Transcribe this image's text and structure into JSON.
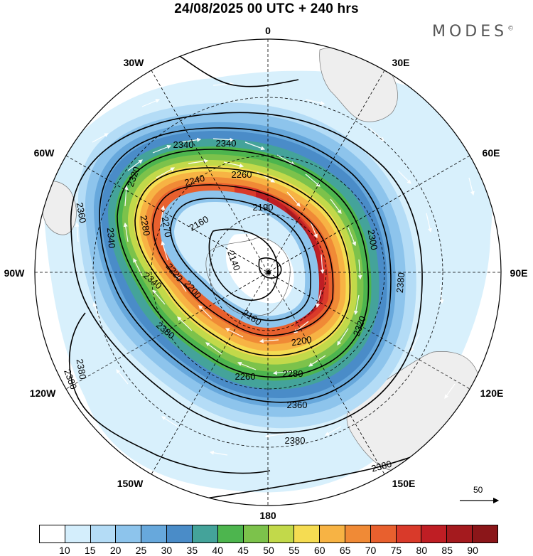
{
  "title": "24/08/2025  00 UTC  + 240 hrs",
  "brand": "MODES",
  "brand_mark": "©",
  "map": {
    "projection": "south polar stereographic",
    "longitude_labels": {
      "top": "0",
      "top_right": "30E",
      "upper_right": "60E",
      "right": "90E",
      "lower_right": "120E",
      "bottom_right": "150E",
      "bottom": "180",
      "bottom_left": "150W",
      "lower_left": "120W",
      "left": "90W",
      "upper_left": "60W",
      "top_left": "30W"
    },
    "contour_labels": [
      "2340",
      "2340",
      "2320",
      "2260",
      "2240",
      "2360",
      "2160",
      "2190",
      "2280",
      "2270",
      "2340",
      "2140",
      "2300",
      "2380",
      "2220",
      "2340",
      "2200",
      "2180",
      "2320",
      "2200",
      "2380",
      "2280",
      "2360",
      "2380",
      "2380",
      "2380",
      "2380",
      "2260"
    ],
    "wind_reference": "50"
  },
  "colorbar": {
    "labels": [
      "10",
      "15",
      "20",
      "25",
      "30",
      "35",
      "40",
      "45",
      "50",
      "55",
      "60",
      "65",
      "70",
      "75",
      "80",
      "85",
      "90"
    ],
    "colors": [
      "#ffffff",
      "#d4eefc",
      "#b4dcf6",
      "#8dc4ec",
      "#67a8dc",
      "#4a8cc8",
      "#44a39a",
      "#4db54e",
      "#7cc24b",
      "#c2d94a",
      "#f5dc52",
      "#f7b344",
      "#f08a36",
      "#e8602e",
      "#d93a2a",
      "#bf1e24",
      "#a41a1e",
      "#8b1619"
    ]
  }
}
